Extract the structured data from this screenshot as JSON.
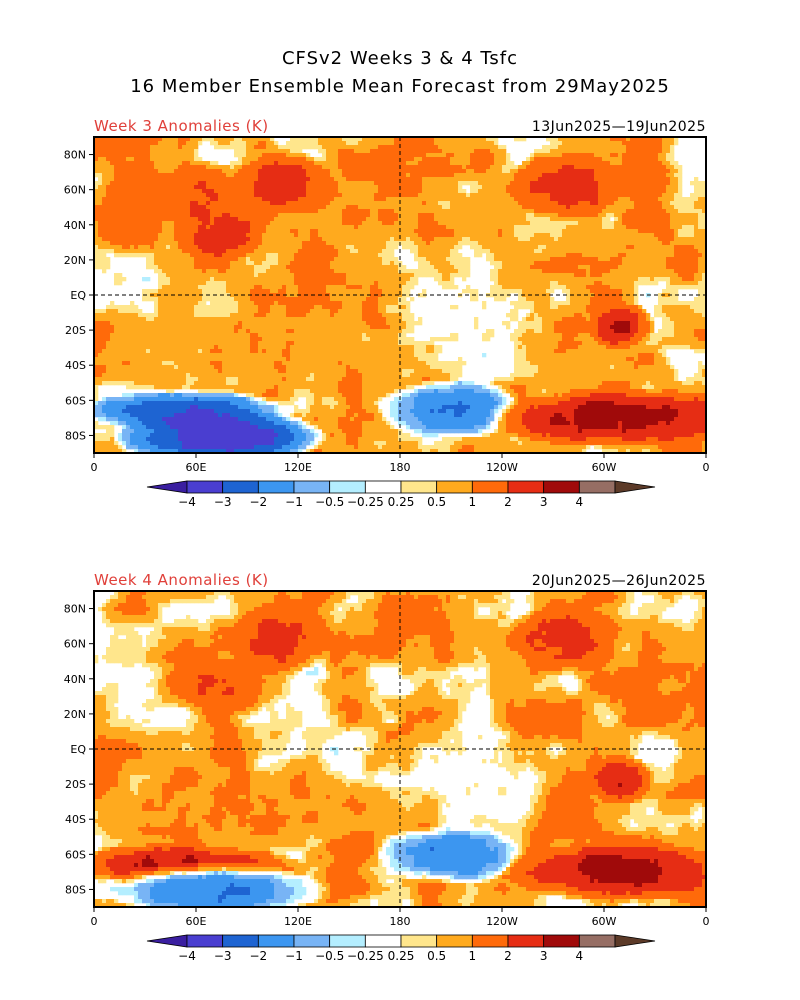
{
  "header": {
    "title_line1": "CFSv2 Weeks 3 & 4 Tsfc",
    "title_line2": "16 Member Ensemble Mean Forecast from 29May2025"
  },
  "panels": [
    {
      "title": "Week 3 Anomalies (K)",
      "dates": "13Jun2025—19Jun2025"
    },
    {
      "title": "Week 4 Anomalies (K)",
      "dates": "20Jun2025—26Jun2025"
    }
  ],
  "axes": {
    "lat_labels": [
      "80N",
      "60N",
      "40N",
      "20N",
      "EQ",
      "20S",
      "40S",
      "60S",
      "80S"
    ],
    "lat_values": [
      80,
      60,
      40,
      20,
      0,
      -20,
      -40,
      -60,
      -80
    ],
    "lon_labels": [
      "0",
      "60E",
      "120E",
      "180",
      "120W",
      "60W",
      "0"
    ],
    "lon_values": [
      0,
      60,
      120,
      180,
      240,
      300,
      360
    ]
  },
  "colorbar": {
    "labels": [
      "−4",
      "−3",
      "−2",
      "−1",
      "−0.5",
      "−0.25",
      "0.25",
      "0.5",
      "1",
      "2",
      "3",
      "4"
    ],
    "colors": [
      "#3a1ea0",
      "#4a3ed0",
      "#1e64d2",
      "#3c96f0",
      "#78b4f5",
      "#b4eeff",
      "#ffffff",
      "#ffe68c",
      "#ffaa1e",
      "#ff6a0a",
      "#e62d14",
      "#a00a0a",
      "#966e64",
      "#5c3a28"
    ]
  },
  "chart_data": [
    {
      "type": "heatmap",
      "title": "Week 3 Anomalies (K)",
      "period": "13Jun2025—19Jun2025",
      "units": "K",
      "levels": [
        -4,
        -3,
        -2,
        -1,
        -0.5,
        -0.25,
        0.25,
        0.5,
        1,
        2,
        3,
        4
      ],
      "xlim": [
        0,
        360
      ],
      "ylim": [
        -90,
        90
      ],
      "regions": [
        {
          "lon": [
            95,
            130
          ],
          "lat": [
            55,
            75
          ],
          "value": 2.5
        },
        {
          "lon": [
            40,
            80
          ],
          "lat": [
            45,
            70
          ],
          "value": 2
        },
        {
          "lon": [
            55,
            90
          ],
          "lat": [
            25,
            45
          ],
          "value": 2.5
        },
        {
          "lon": [
            0,
            40
          ],
          "lat": [
            30,
            60
          ],
          "value": 1.5
        },
        {
          "lon": [
            255,
            300
          ],
          "lat": [
            50,
            75
          ],
          "value": 2.5
        },
        {
          "lon": [
            300,
            320
          ],
          "lat": [
            -25,
            -10
          ],
          "value": 3
        },
        {
          "lon": [
            10,
            100
          ],
          "lat": [
            -72,
            -60
          ],
          "value": -3
        },
        {
          "lon": [
            30,
            120
          ],
          "lat": [
            -90,
            -72
          ],
          "value": -4
        },
        {
          "lon": [
            180,
            240
          ],
          "lat": [
            -75,
            -55
          ],
          "value": -2
        },
        {
          "lon": [
            250,
            360
          ],
          "lat": [
            -80,
            -60
          ],
          "value": 3.5
        },
        {
          "lon": [
            180,
            260
          ],
          "lat": [
            -40,
            10
          ],
          "value": 0
        },
        {
          "lon": [
            0,
            180
          ],
          "lat": [
            -50,
            -20
          ],
          "value": 0.8
        }
      ]
    },
    {
      "type": "heatmap",
      "title": "Week 4 Anomalies (K)",
      "period": "20Jun2025—26Jun2025",
      "units": "K",
      "levels": [
        -4,
        -3,
        -2,
        -1,
        -0.5,
        -0.25,
        0.25,
        0.5,
        1,
        2,
        3,
        4
      ],
      "xlim": [
        0,
        360
      ],
      "ylim": [
        -90,
        90
      ],
      "regions": [
        {
          "lon": [
            90,
            130
          ],
          "lat": [
            50,
            75
          ],
          "value": 2.5
        },
        {
          "lon": [
            50,
            90
          ],
          "lat": [
            25,
            45
          ],
          "value": 2
        },
        {
          "lon": [
            255,
            300
          ],
          "lat": [
            50,
            75
          ],
          "value": 2.5
        },
        {
          "lon": [
            300,
            320
          ],
          "lat": [
            -25,
            -10
          ],
          "value": 3
        },
        {
          "lon": [
            0,
            100
          ],
          "lat": [
            -72,
            -60
          ],
          "value": 3
        },
        {
          "lon": [
            20,
            120
          ],
          "lat": [
            -90,
            -72
          ],
          "value": -2
        },
        {
          "lon": [
            180,
            240
          ],
          "lat": [
            -70,
            -50
          ],
          "value": -2
        },
        {
          "lon": [
            260,
            360
          ],
          "lat": [
            -80,
            -60
          ],
          "value": 3.5
        },
        {
          "lon": [
            180,
            260
          ],
          "lat": [
            -40,
            10
          ],
          "value": 0
        },
        {
          "lon": [
            0,
            180
          ],
          "lat": [
            -50,
            -20
          ],
          "value": 1
        }
      ]
    }
  ]
}
